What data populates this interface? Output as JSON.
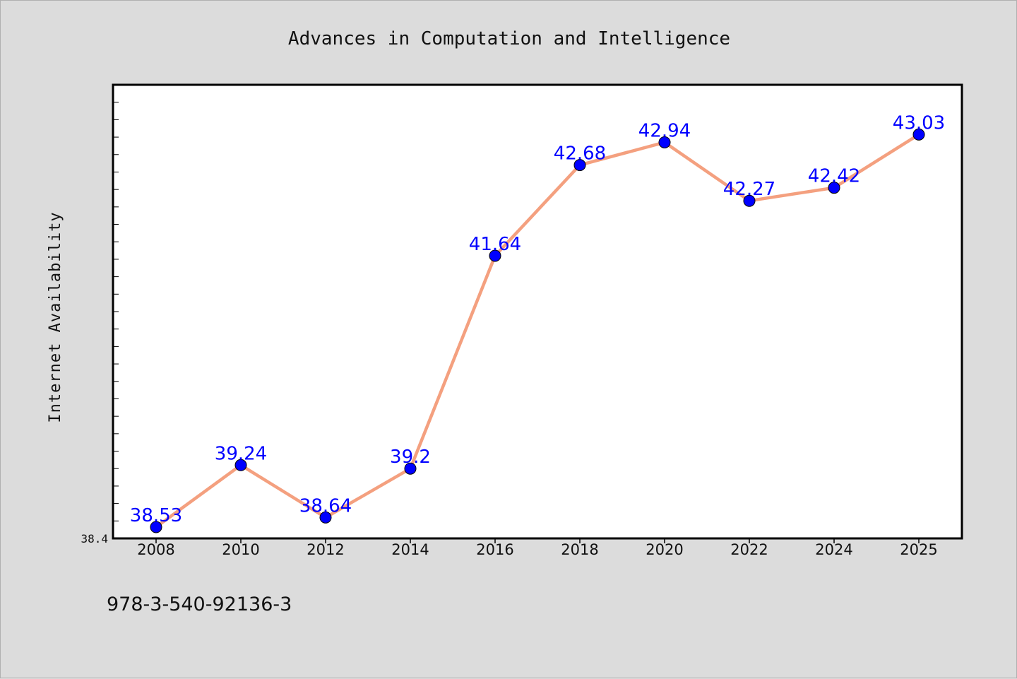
{
  "chart_data": {
    "type": "line",
    "title": "Advances in Computation and Intelligence",
    "ylabel": "Internet Availability",
    "xlabel": "",
    "categories": [
      "2008",
      "2010",
      "2012",
      "2014",
      "2016",
      "2018",
      "2020",
      "2022",
      "2024",
      "2025"
    ],
    "series": [
      {
        "values": [
          38.53,
          39.24,
          38.64,
          39.2,
          41.64,
          42.68,
          42.94,
          42.27,
          42.42,
          43.03
        ],
        "labels": [
          "38.53",
          "39.24",
          "38.64",
          "39.2",
          "41.64",
          "42.68",
          "42.94",
          "42.27",
          "42.42",
          "43.03"
        ]
      }
    ],
    "ytick_labels": [
      "38.4"
    ],
    "ylim": [
      38.4,
      43.6
    ],
    "grid": false,
    "legend": "none",
    "colors": {
      "line": "#f4a07f",
      "marker": "#0000ff",
      "data_label": "#0000ff",
      "plot_background": "#ffffff",
      "page_background": "#dcdcdc"
    }
  },
  "footer": {
    "isbn": "978-3-540-92136-3"
  }
}
